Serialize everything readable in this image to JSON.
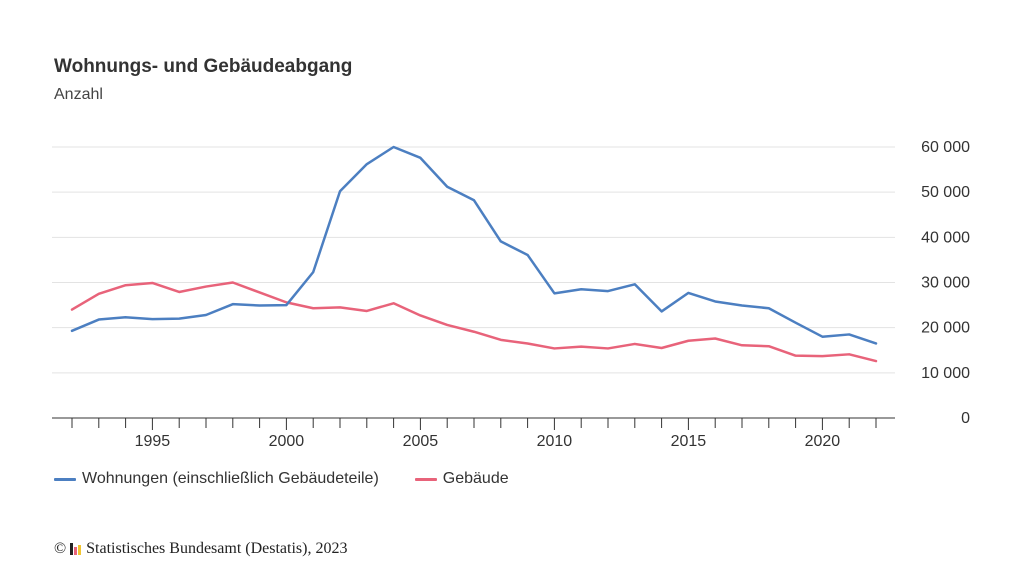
{
  "header": {
    "title": "Wohnungs- und Gebäudeabgang",
    "subtitle": "Anzahl"
  },
  "legend": {
    "items": [
      {
        "label": "Wohnungen (einschließlich Gebäudeteile)",
        "color": "#4c7fc1"
      },
      {
        "label": "Gebäude",
        "color": "#e8637a"
      }
    ]
  },
  "footer": {
    "copyright_symbol": "©",
    "source": "Statistisches Bundesamt (Destatis), 2023",
    "logo_colors": [
      "#222222",
      "#e8637a",
      "#f2c530"
    ]
  },
  "chart_data": {
    "type": "line",
    "title": "Wohnungs- und Gebäudeabgang",
    "subtitle": "Anzahl",
    "x": [
      1992,
      1993,
      1994,
      1995,
      1996,
      1997,
      1998,
      1999,
      2000,
      2001,
      2002,
      2003,
      2004,
      2005,
      2006,
      2007,
      2008,
      2009,
      2010,
      2011,
      2012,
      2013,
      2014,
      2015,
      2016,
      2017,
      2018,
      2019,
      2020,
      2021,
      2022
    ],
    "x_tick_labels": [
      "1995",
      "2000",
      "2005",
      "2010",
      "2015",
      "2020"
    ],
    "y_tick_labels": [
      "0",
      "10 000",
      "20 000",
      "30 000",
      "40 000",
      "50 000",
      "60 000"
    ],
    "ylim": [
      0,
      60000
    ],
    "y_axis_position": "right",
    "grid": true,
    "legend_position": "bottom-left",
    "series": [
      {
        "name": "Wohnungen (einschließlich Gebäudeteile)",
        "color": "#4c7fc1",
        "values": [
          19300,
          21800,
          22300,
          21900,
          22000,
          22800,
          25200,
          24900,
          25000,
          32300,
          50200,
          56200,
          60000,
          57600,
          51200,
          48200,
          39100,
          36100,
          27600,
          28500,
          28100,
          29600,
          23600,
          27700,
          25800,
          24900,
          24300,
          21100,
          18000,
          18500,
          16500
        ]
      },
      {
        "name": "Gebäude",
        "color": "#e8637a",
        "values": [
          24000,
          27500,
          29400,
          29900,
          27900,
          29100,
          30000,
          27800,
          25600,
          24300,
          24500,
          23700,
          25400,
          22700,
          20600,
          19100,
          17300,
          16500,
          15400,
          15800,
          15400,
          16400,
          15500,
          17100,
          17600,
          16100,
          15900,
          13800,
          13700,
          14100,
          12600
        ]
      }
    ]
  }
}
